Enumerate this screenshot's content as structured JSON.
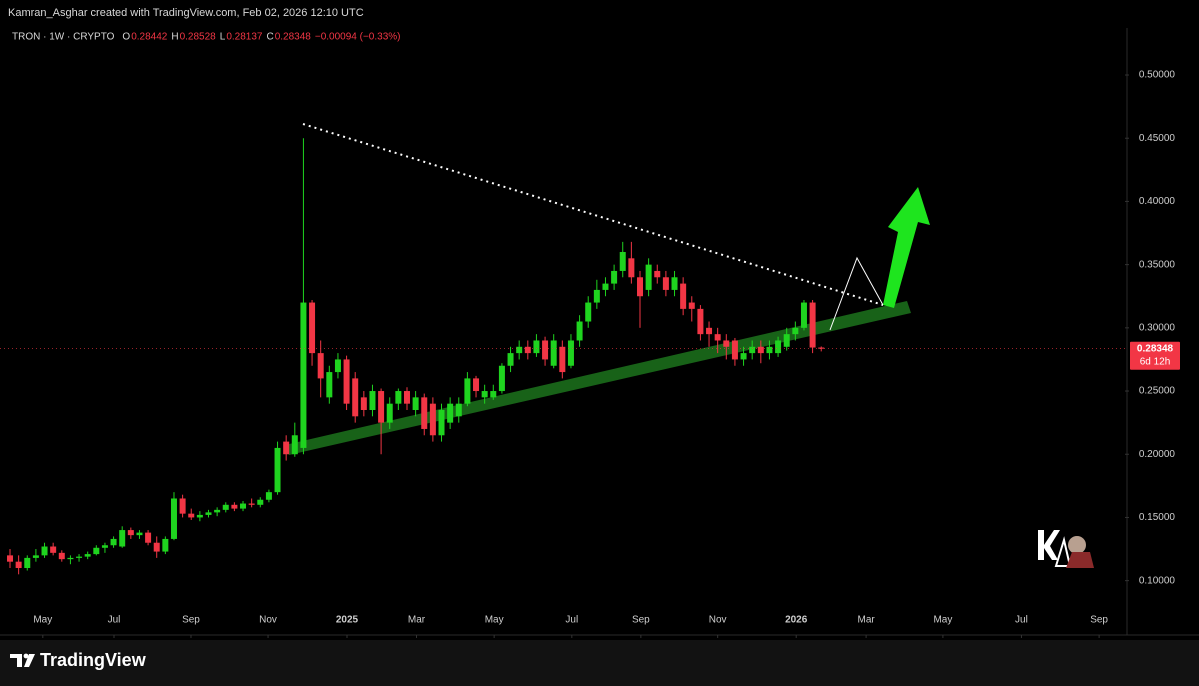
{
  "header": "Kamran_Asghar created with TradingView.com, Feb 02, 2026 12:10 UTC",
  "chart_data": {
    "type": "candlestick",
    "symbol": "TRON · 1W · CRYPTO",
    "ohlc_legend": [
      {
        "label": "O",
        "value": 0.28442
      },
      {
        "label": "H",
        "value": 0.28528
      },
      {
        "label": "L",
        "value": 0.28137
      },
      {
        "label": "C",
        "value": 0.28348
      }
    ],
    "change": "−0.00094 (−0.33%)",
    "price_label": {
      "value": 0.28348,
      "countdown": "6d 12h"
    },
    "up_color": "#1fd41f",
    "down_color": "#f23645",
    "ylim": [
      0.057,
      0.5372
    ],
    "yticks": [
      {
        "value": 0.1,
        "label": "0.10000"
      },
      {
        "value": 0.15,
        "label": "0.15000"
      },
      {
        "value": 0.2,
        "label": "0.20000"
      },
      {
        "value": 0.25,
        "label": "0.25000"
      },
      {
        "value": 0.3,
        "label": "0.30000"
      },
      {
        "value": 0.35,
        "label": "0.35000"
      },
      {
        "value": 0.4,
        "label": "0.40000"
      },
      {
        "value": 0.45,
        "label": "0.45000"
      },
      {
        "value": 0.5,
        "label": "0.50000"
      }
    ],
    "xlim": [
      -1.16,
      129.2
    ],
    "xticks": [
      {
        "value": 3.8,
        "label": "May"
      },
      {
        "value": 12.05,
        "label": "Jul"
      },
      {
        "value": 20.97,
        "label": "Sep"
      },
      {
        "value": 29.9,
        "label": "Nov"
      },
      {
        "value": 39.05,
        "label": "2025"
      },
      {
        "value": 47.1,
        "label": "Mar"
      },
      {
        "value": 56.1,
        "label": "May"
      },
      {
        "value": 65.1,
        "label": "Jul"
      },
      {
        "value": 73.1,
        "label": "Sep"
      },
      {
        "value": 82.0,
        "label": "Nov"
      },
      {
        "value": 91.1,
        "label": "2026"
      },
      {
        "value": 99.2,
        "label": "Mar"
      },
      {
        "value": 108.1,
        "label": "May"
      },
      {
        "value": 117.2,
        "label": "Jul"
      },
      {
        "value": 126.2,
        "label": "Sep"
      }
    ],
    "candles": [
      [
        0.12,
        0.125,
        0.11,
        0.115
      ],
      [
        0.115,
        0.12,
        0.105,
        0.11
      ],
      [
        0.11,
        0.12,
        0.108,
        0.118
      ],
      [
        0.118,
        0.125,
        0.115,
        0.12
      ],
      [
        0.12,
        0.13,
        0.118,
        0.127
      ],
      [
        0.127,
        0.13,
        0.12,
        0.122
      ],
      [
        0.122,
        0.124,
        0.115,
        0.117
      ],
      [
        0.117,
        0.12,
        0.113,
        0.118
      ],
      [
        0.118,
        0.121,
        0.115,
        0.119
      ],
      [
        0.119,
        0.123,
        0.117,
        0.121
      ],
      [
        0.121,
        0.128,
        0.12,
        0.126
      ],
      [
        0.126,
        0.13,
        0.122,
        0.128
      ],
      [
        0.128,
        0.135,
        0.126,
        0.133
      ],
      [
        0.127,
        0.143,
        0.126,
        0.14
      ],
      [
        0.14,
        0.142,
        0.133,
        0.136
      ],
      [
        0.136,
        0.14,
        0.133,
        0.138
      ],
      [
        0.138,
        0.14,
        0.128,
        0.13
      ],
      [
        0.13,
        0.135,
        0.118,
        0.123
      ],
      [
        0.123,
        0.135,
        0.121,
        0.133
      ],
      [
        0.133,
        0.17,
        0.132,
        0.165
      ],
      [
        0.165,
        0.168,
        0.15,
        0.153
      ],
      [
        0.153,
        0.157,
        0.148,
        0.15
      ],
      [
        0.15,
        0.155,
        0.147,
        0.152
      ],
      [
        0.152,
        0.156,
        0.15,
        0.154
      ],
      [
        0.154,
        0.158,
        0.151,
        0.156
      ],
      [
        0.156,
        0.162,
        0.154,
        0.16
      ],
      [
        0.16,
        0.162,
        0.155,
        0.157
      ],
      [
        0.157,
        0.163,
        0.155,
        0.161
      ],
      [
        0.161,
        0.165,
        0.158,
        0.16
      ],
      [
        0.16,
        0.166,
        0.158,
        0.164
      ],
      [
        0.164,
        0.172,
        0.162,
        0.17
      ],
      [
        0.17,
        0.21,
        0.168,
        0.205
      ],
      [
        0.21,
        0.215,
        0.195,
        0.2
      ],
      [
        0.2,
        0.225,
        0.198,
        0.215
      ],
      [
        0.205,
        0.45,
        0.2,
        0.32
      ],
      [
        0.32,
        0.322,
        0.27,
        0.28
      ],
      [
        0.28,
        0.29,
        0.245,
        0.26
      ],
      [
        0.245,
        0.27,
        0.24,
        0.265
      ],
      [
        0.265,
        0.28,
        0.26,
        0.275
      ],
      [
        0.275,
        0.278,
        0.235,
        0.24
      ],
      [
        0.26,
        0.265,
        0.225,
        0.23
      ],
      [
        0.245,
        0.25,
        0.23,
        0.235
      ],
      [
        0.235,
        0.255,
        0.23,
        0.25
      ],
      [
        0.25,
        0.252,
        0.2,
        0.225
      ],
      [
        0.225,
        0.245,
        0.22,
        0.24
      ],
      [
        0.24,
        0.252,
        0.235,
        0.25
      ],
      [
        0.25,
        0.253,
        0.235,
        0.24
      ],
      [
        0.235,
        0.25,
        0.23,
        0.245
      ],
      [
        0.245,
        0.248,
        0.215,
        0.22
      ],
      [
        0.24,
        0.245,
        0.21,
        0.215
      ],
      [
        0.215,
        0.24,
        0.21,
        0.235
      ],
      [
        0.225,
        0.245,
        0.22,
        0.24
      ],
      [
        0.23,
        0.245,
        0.225,
        0.24
      ],
      [
        0.24,
        0.265,
        0.238,
        0.26
      ],
      [
        0.26,
        0.262,
        0.245,
        0.25
      ],
      [
        0.245,
        0.255,
        0.24,
        0.25
      ],
      [
        0.245,
        0.255,
        0.243,
        0.25
      ],
      [
        0.25,
        0.272,
        0.248,
        0.27
      ],
      [
        0.27,
        0.285,
        0.265,
        0.28
      ],
      [
        0.28,
        0.29,
        0.275,
        0.285
      ],
      [
        0.285,
        0.29,
        0.275,
        0.28
      ],
      [
        0.28,
        0.295,
        0.277,
        0.29
      ],
      [
        0.29,
        0.293,
        0.27,
        0.275
      ],
      [
        0.27,
        0.295,
        0.268,
        0.29
      ],
      [
        0.285,
        0.29,
        0.26,
        0.265
      ],
      [
        0.27,
        0.295,
        0.268,
        0.29
      ],
      [
        0.29,
        0.31,
        0.285,
        0.305
      ],
      [
        0.305,
        0.325,
        0.3,
        0.32
      ],
      [
        0.32,
        0.338,
        0.315,
        0.33
      ],
      [
        0.33,
        0.34,
        0.325,
        0.335
      ],
      [
        0.335,
        0.35,
        0.33,
        0.345
      ],
      [
        0.345,
        0.368,
        0.34,
        0.36
      ],
      [
        0.355,
        0.368,
        0.335,
        0.34
      ],
      [
        0.34,
        0.345,
        0.3,
        0.325
      ],
      [
        0.33,
        0.355,
        0.325,
        0.35
      ],
      [
        0.345,
        0.35,
        0.335,
        0.34
      ],
      [
        0.34,
        0.345,
        0.325,
        0.33
      ],
      [
        0.33,
        0.345,
        0.325,
        0.34
      ],
      [
        0.335,
        0.34,
        0.31,
        0.315
      ],
      [
        0.32,
        0.325,
        0.305,
        0.315
      ],
      [
        0.315,
        0.318,
        0.29,
        0.295
      ],
      [
        0.3,
        0.305,
        0.285,
        0.295
      ],
      [
        0.295,
        0.3,
        0.28,
        0.29
      ],
      [
        0.29,
        0.295,
        0.275,
        0.285
      ],
      [
        0.29,
        0.292,
        0.27,
        0.275
      ],
      [
        0.275,
        0.285,
        0.27,
        0.28
      ],
      [
        0.28,
        0.29,
        0.275,
        0.285
      ],
      [
        0.285,
        0.29,
        0.272,
        0.28
      ],
      [
        0.28,
        0.29,
        0.275,
        0.285
      ],
      [
        0.28,
        0.293,
        0.277,
        0.29
      ],
      [
        0.285,
        0.3,
        0.282,
        0.295
      ],
      [
        0.295,
        0.305,
        0.29,
        0.3
      ],
      [
        0.3,
        0.322,
        0.298,
        0.32
      ],
      [
        0.32,
        0.322,
        0.28,
        0.28442
      ],
      [
        0.28442,
        0.28528,
        0.28137,
        0.28348
      ]
    ]
  },
  "footer": "TradingView"
}
